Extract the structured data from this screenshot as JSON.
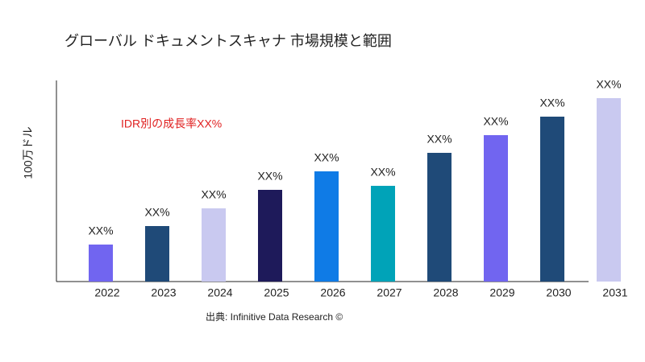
{
  "chart_data": {
    "type": "bar",
    "title": "グローバル ドキュメントスキャナ 市場規模と範囲",
    "y_label": "100万ドル",
    "annotation": "IDR別の成長率XX%",
    "source": "出典: Infinitive Data Research ©",
    "categories": [
      "2022",
      "2023",
      "2024",
      "2025",
      "2026",
      "2027",
      "2028",
      "2029",
      "2030",
      "2031"
    ],
    "values": [
      46,
      69,
      91,
      114,
      137,
      119,
      160,
      182,
      205,
      228
    ],
    "value_labels": [
      "XX%",
      "XX%",
      "XX%",
      "XX%",
      "XX%",
      "XX%",
      "XX%",
      "XX%",
      "XX%",
      "XX%"
    ],
    "colors": [
      "#7165f0",
      "#1f4a78",
      "#c9c9f0",
      "#1e1a5a",
      "#0f7be6",
      "#00a3b8",
      "#1f4a78",
      "#7165f0",
      "#1f4a78",
      "#c9c9f0"
    ],
    "ylim": [
      0,
      250
    ],
    "grid": false
  }
}
